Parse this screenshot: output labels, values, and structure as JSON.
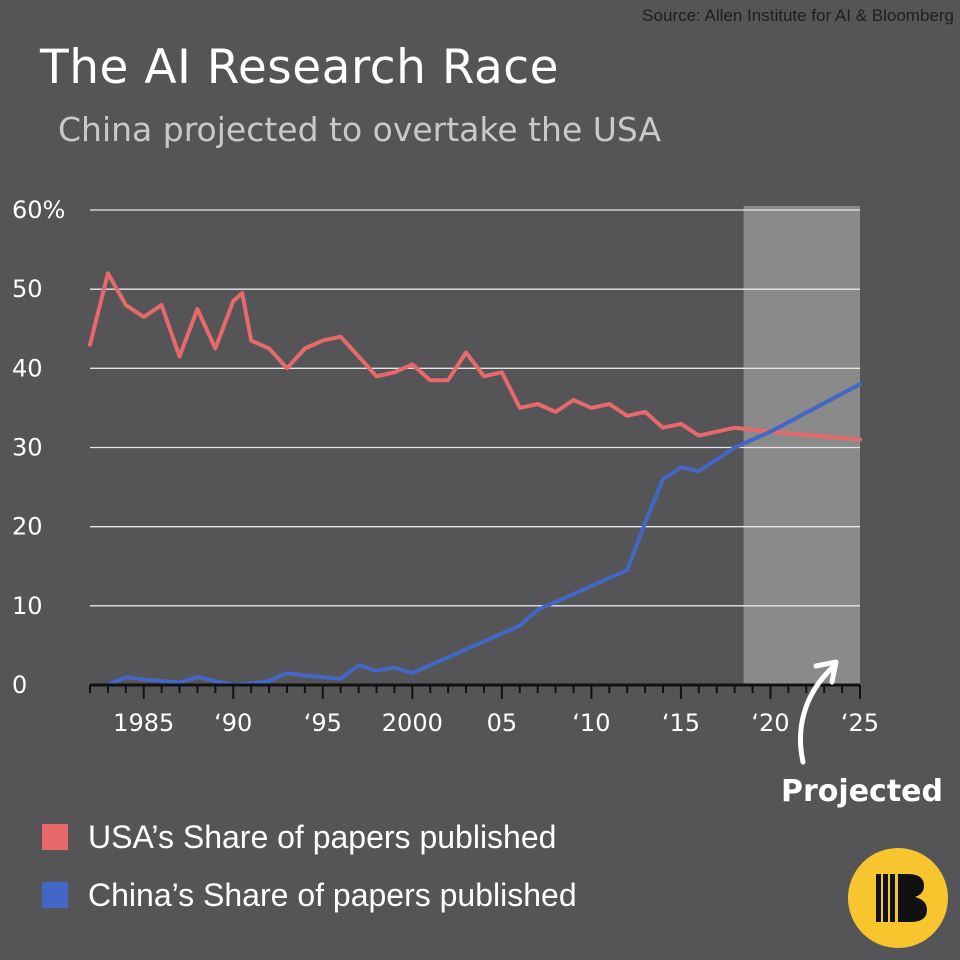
{
  "source": "Source: Allen Institute for AI & Bloomberg",
  "title": "The AI Research Race",
  "subtitle": "China projected to overtake the USA",
  "projected_label": "Projected",
  "legend": [
    {
      "label": "USA’s Share of papers published",
      "color": "#e8696b"
    },
    {
      "label": "China’s Share of papers published",
      "color": "#4466c4"
    }
  ],
  "logo_icon": "bloomberg-b-logo",
  "chart_data": {
    "type": "line",
    "title": "The AI Research Race",
    "subtitle": "China projected to overtake the USA",
    "xlim": [
      1982,
      2025
    ],
    "ylim": [
      0,
      60
    ],
    "grid": true,
    "y_ticks": [
      {
        "value": 0,
        "label": "0"
      },
      {
        "value": 10,
        "label": "10"
      },
      {
        "value": 20,
        "label": "20"
      },
      {
        "value": 30,
        "label": "30"
      },
      {
        "value": 40,
        "label": "40"
      },
      {
        "value": 50,
        "label": "50"
      },
      {
        "value": 60,
        "label": "60%"
      }
    ],
    "x_ticks": [
      {
        "value": 1985,
        "label": "1985"
      },
      {
        "value": 1990,
        "label": "‘90"
      },
      {
        "value": 1995,
        "label": "‘95"
      },
      {
        "value": 2000,
        "label": "2000"
      },
      {
        "value": 2005,
        "label": "05"
      },
      {
        "value": 2010,
        "label": "‘10"
      },
      {
        "value": 2015,
        "label": "‘15"
      },
      {
        "value": 2020,
        "label": "‘20"
      },
      {
        "value": 2025,
        "label": "‘25"
      }
    ],
    "projected_range": [
      2018.5,
      2025
    ],
    "series": [
      {
        "name": "USA’s Share of papers published",
        "color": "#e8696b",
        "x": [
          1982,
          1983,
          1984,
          1985,
          1986,
          1987,
          1988,
          1989,
          1990,
          1990.5,
          1991,
          1992,
          1993,
          1994,
          1995,
          1996,
          1997,
          1998,
          1999,
          2000,
          2001,
          2002,
          2003,
          2004,
          2005,
          2006,
          2007,
          2008,
          2009,
          2010,
          2011,
          2012,
          2013,
          2014,
          2015,
          2016,
          2017,
          2018,
          2020,
          2025
        ],
        "y": [
          43,
          52,
          48,
          46.5,
          48,
          41.5,
          47.5,
          42.5,
          48.5,
          49.5,
          43.5,
          42.5,
          40,
          42.5,
          43.5,
          44,
          41.5,
          39,
          39.5,
          40.5,
          38.5,
          38.5,
          42,
          39,
          39.5,
          35,
          35.5,
          34.5,
          36,
          35,
          35.5,
          34,
          34.5,
          32.5,
          33,
          31.5,
          32,
          32.5,
          32,
          31
        ]
      },
      {
        "name": "China’s Share of papers published",
        "color": "#4466c4",
        "x": [
          1983,
          1984,
          1985,
          1986,
          1987,
          1988,
          1989,
          1990,
          1991,
          1992,
          1993,
          1994,
          1995,
          1996,
          1997,
          1998,
          1999,
          2000,
          2001,
          2002,
          2003,
          2004,
          2005,
          2006,
          2007,
          2008,
          2009,
          2010,
          2011,
          2012,
          2013,
          2014,
          2015,
          2016,
          2017,
          2018,
          2020,
          2025
        ],
        "y": [
          0,
          1,
          0.7,
          0.5,
          0.3,
          1,
          0.5,
          0,
          0.2,
          0.5,
          1.5,
          1.2,
          1,
          0.8,
          2.5,
          1.8,
          2.2,
          1.5,
          2.5,
          3.5,
          4.5,
          5.5,
          6.5,
          7.5,
          9.5,
          10.5,
          11.5,
          12.5,
          13.5,
          14.5,
          20.5,
          26,
          27.5,
          27,
          28.5,
          30,
          32,
          38
        ]
      }
    ]
  }
}
